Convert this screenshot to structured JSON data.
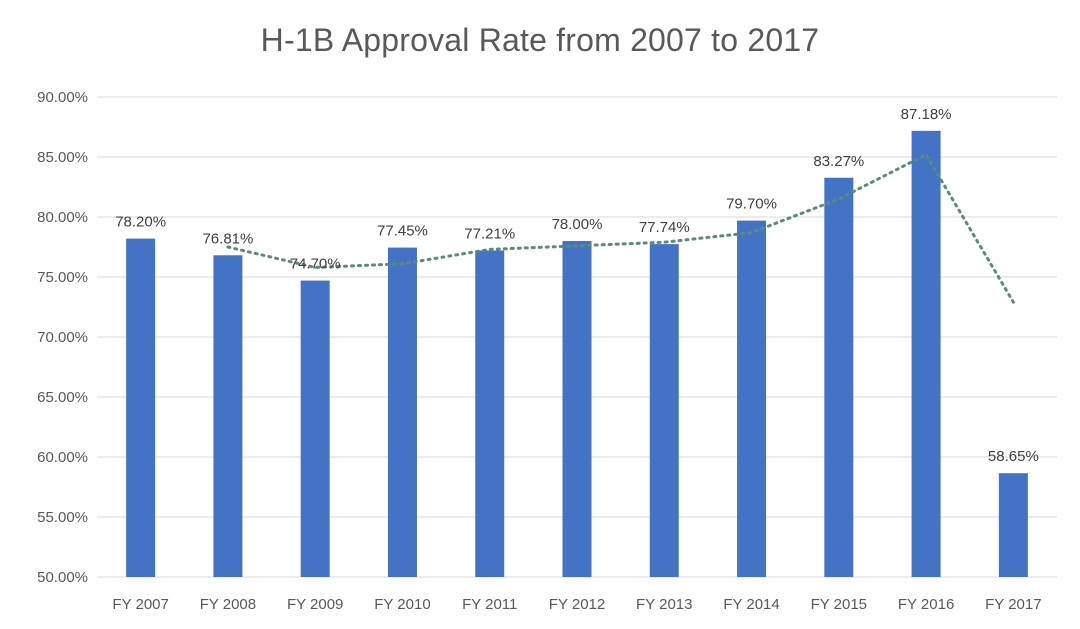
{
  "chart_data": {
    "type": "bar",
    "title": "H-1B Approval Rate from 2007 to 2017",
    "categories": [
      "FY 2007",
      "FY 2008",
      "FY 2009",
      "FY 2010",
      "FY 2011",
      "FY 2012",
      "FY 2013",
      "FY 2014",
      "FY 2015",
      "FY 2016",
      "FY 2017"
    ],
    "values": [
      78.2,
      76.81,
      74.7,
      77.45,
      77.21,
      78.0,
      77.74,
      79.7,
      83.27,
      87.18,
      58.65
    ],
    "data_labels": [
      "78.20%",
      "76.81%",
      "74.70%",
      "77.45%",
      "77.21%",
      "78.00%",
      "77.74%",
      "79.70%",
      "83.27%",
      "87.18%",
      "58.65%"
    ],
    "ylim": [
      50,
      90
    ],
    "yticks": [
      50,
      55,
      60,
      65,
      70,
      75,
      80,
      85,
      90
    ],
    "ytick_labels": [
      "50.00%",
      "55.00%",
      "60.00%",
      "65.00%",
      "70.00%",
      "75.00%",
      "80.00%",
      "85.00%",
      "90.00%"
    ],
    "grid": true,
    "legend": "none",
    "trendline": {
      "type": "moving-average",
      "style": "dotted",
      "x_categories": [
        "FY 2008",
        "FY 2009",
        "FY 2010",
        "FY 2011",
        "FY 2012",
        "FY 2013",
        "FY 2014",
        "FY 2015",
        "FY 2016",
        "FY 2017"
      ],
      "values": [
        77.5,
        75.8,
        76.1,
        77.3,
        77.6,
        77.9,
        78.7,
        81.5,
        85.2,
        72.9
      ]
    },
    "colors": {
      "bar": "#4472C4",
      "trendline": "#5B8C7B",
      "grid": "#D9D9D9",
      "text": "#595959"
    }
  }
}
